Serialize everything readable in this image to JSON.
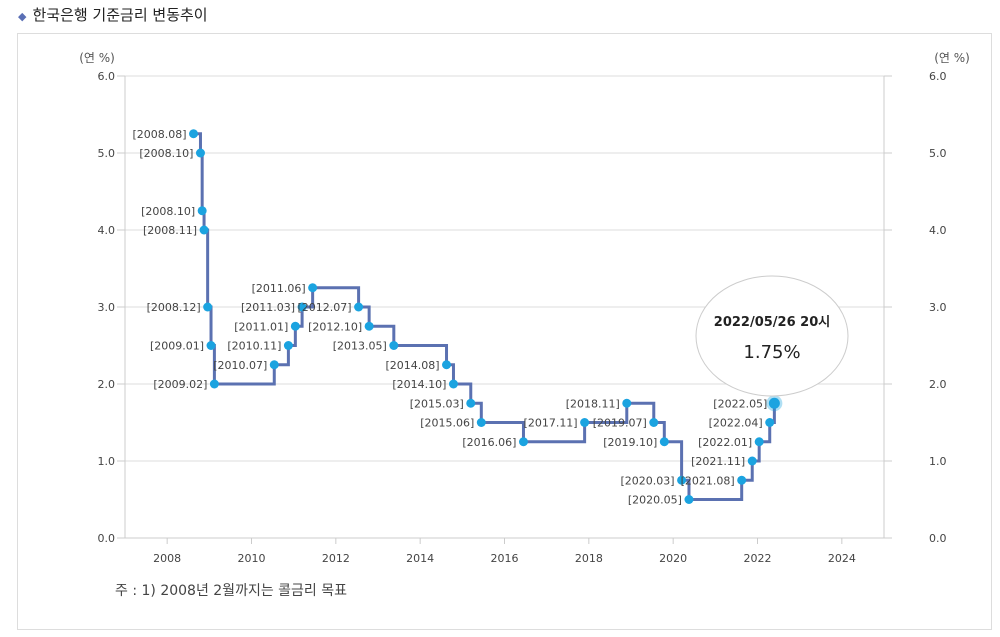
{
  "title": "한국은행 기준금리 변동추이",
  "note": "주 : 1) 2008년 2월까지는 콜금리 목표",
  "tooltip": {
    "date": "2022/05/26 20시",
    "value": "1.75%"
  },
  "colors": {
    "line": "#5b71b1",
    "point": "#1ba3e0",
    "accent": "#5a6fb5"
  },
  "chart_data": {
    "type": "line",
    "step": true,
    "ylabel_left": "(연 %)",
    "ylabel_right": "(연 %)",
    "xlim": [
      2007,
      2025
    ],
    "ylim": [
      0,
      6
    ],
    "yticks": [
      "0.0",
      "1.0",
      "2.0",
      "3.0",
      "4.0",
      "5.0",
      "6.0"
    ],
    "xticks": [
      "2008",
      "2010",
      "2012",
      "2014",
      "2016",
      "2018",
      "2020",
      "2022",
      "2024"
    ],
    "grid": true,
    "points": [
      {
        "label": "[2008.08]",
        "x": 2008.625,
        "y": 5.25
      },
      {
        "label": "[2008.10]",
        "x": 2008.79,
        "y": 5.0
      },
      {
        "label": "[2008.10]",
        "x": 2008.83,
        "y": 4.25
      },
      {
        "label": "[2008.11]",
        "x": 2008.875,
        "y": 4.0
      },
      {
        "label": "[2008.12]",
        "x": 2008.96,
        "y": 3.0
      },
      {
        "label": "[2009.01]",
        "x": 2009.04,
        "y": 2.5
      },
      {
        "label": "[2009.02]",
        "x": 2009.12,
        "y": 2.0
      },
      {
        "label": "[2010.07]",
        "x": 2010.54,
        "y": 2.25
      },
      {
        "label": "[2010.11]",
        "x": 2010.875,
        "y": 2.5
      },
      {
        "label": "[2011.01]",
        "x": 2011.04,
        "y": 2.75
      },
      {
        "label": "[2011.03]",
        "x": 2011.2,
        "y": 3.0
      },
      {
        "label": "[2011.06]",
        "x": 2011.45,
        "y": 3.25
      },
      {
        "label": "[2012.07]",
        "x": 2012.54,
        "y": 3.0
      },
      {
        "label": "[2012.10]",
        "x": 2012.79,
        "y": 2.75
      },
      {
        "label": "[2013.05]",
        "x": 2013.375,
        "y": 2.5
      },
      {
        "label": "[2014.08]",
        "x": 2014.625,
        "y": 2.25
      },
      {
        "label": "[2014.10]",
        "x": 2014.79,
        "y": 2.0
      },
      {
        "label": "[2015.03]",
        "x": 2015.2,
        "y": 1.75
      },
      {
        "label": "[2015.06]",
        "x": 2015.45,
        "y": 1.5
      },
      {
        "label": "[2016.06]",
        "x": 2016.45,
        "y": 1.25
      },
      {
        "label": "[2017.11]",
        "x": 2017.9,
        "y": 1.5
      },
      {
        "label": "[2018.11]",
        "x": 2018.9,
        "y": 1.75
      },
      {
        "label": "[2019.07]",
        "x": 2019.54,
        "y": 1.5
      },
      {
        "label": "[2019.10]",
        "x": 2019.79,
        "y": 1.25
      },
      {
        "label": "[2020.03]",
        "x": 2020.2,
        "y": 0.75
      },
      {
        "label": "[2020.05]",
        "x": 2020.375,
        "y": 0.5
      },
      {
        "label": "[2021.08]",
        "x": 2021.625,
        "y": 0.75
      },
      {
        "label": "[2021.11]",
        "x": 2021.875,
        "y": 1.0
      },
      {
        "label": "[2022.01]",
        "x": 2022.04,
        "y": 1.25
      },
      {
        "label": "[2022.04]",
        "x": 2022.29,
        "y": 1.5
      },
      {
        "label": "[2022.05]",
        "x": 2022.4,
        "y": 1.75
      }
    ]
  }
}
